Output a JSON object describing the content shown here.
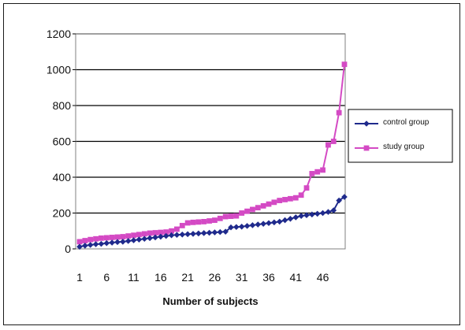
{
  "chart_data": {
    "type": "line",
    "title": "",
    "xlabel": "Number of subjects",
    "ylabel": "",
    "ylim": [
      0,
      1200
    ],
    "yticks": [
      0,
      200,
      400,
      600,
      800,
      1000,
      1200
    ],
    "xticks": [
      1,
      6,
      11,
      16,
      21,
      26,
      31,
      36,
      41,
      46
    ],
    "x": [
      1,
      2,
      3,
      4,
      5,
      6,
      7,
      8,
      9,
      10,
      11,
      12,
      13,
      14,
      15,
      16,
      17,
      18,
      19,
      20,
      21,
      22,
      23,
      24,
      25,
      26,
      27,
      28,
      29,
      30,
      31,
      32,
      33,
      34,
      35,
      36,
      37,
      38,
      39,
      40,
      41,
      42,
      43,
      44,
      45,
      46,
      47,
      48,
      49,
      50
    ],
    "grid": "horizontal",
    "legend_position": "right",
    "series": [
      {
        "name": "control group",
        "color": "#1f2a8c",
        "marker": "diamond",
        "values": [
          12,
          18,
          22,
          26,
          28,
          32,
          35,
          38,
          40,
          44,
          48,
          52,
          56,
          60,
          64,
          68,
          72,
          76,
          78,
          80,
          82,
          84,
          86,
          88,
          90,
          92,
          94,
          96,
          120,
          122,
          124,
          128,
          132,
          136,
          140,
          144,
          148,
          152,
          160,
          168,
          176,
          184,
          188,
          192,
          196,
          200,
          206,
          215,
          270,
          290
        ]
      },
      {
        "name": "study group",
        "color": "#d44ac4",
        "marker": "square",
        "values": [
          40,
          46,
          52,
          56,
          60,
          62,
          64,
          66,
          68,
          72,
          76,
          80,
          84,
          88,
          90,
          92,
          94,
          100,
          110,
          130,
          145,
          148,
          150,
          152,
          156,
          160,
          170,
          180,
          182,
          184,
          200,
          210,
          220,
          230,
          240,
          250,
          260,
          270,
          275,
          280,
          285,
          300,
          340,
          420,
          430,
          440,
          580,
          600,
          760,
          1030
        ]
      }
    ]
  }
}
